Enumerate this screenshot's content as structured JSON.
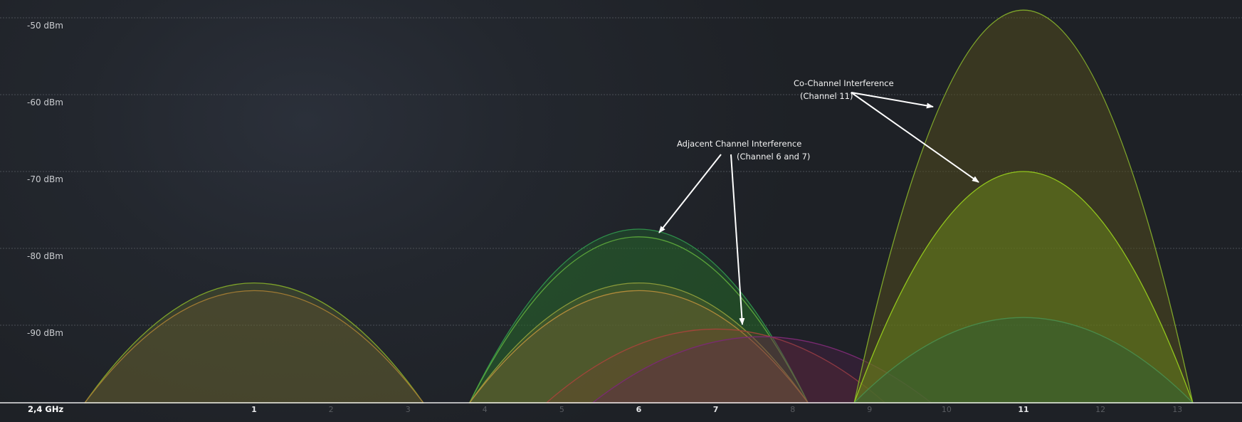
{
  "chart_data": {
    "type": "area",
    "band_label": "2,4 GHz",
    "y_tick_labels": [
      "-50 dBm",
      "-60 dBm",
      "-70 dBm",
      "-80 dBm",
      "-90 dBm"
    ],
    "y_ticks": [
      -50,
      -60,
      -70,
      -80,
      -90
    ],
    "ylim": [
      -100,
      -48
    ],
    "x_tick_labels": [
      "1",
      "2",
      "3",
      "4",
      "5",
      "6",
      "7",
      "8",
      "9",
      "10",
      "11",
      "12",
      "13"
    ],
    "x_ticks": [
      1,
      2,
      3,
      4,
      5,
      6,
      7,
      8,
      9,
      10,
      11,
      12,
      13
    ],
    "highlighted_channels": [
      1,
      6,
      7,
      11
    ],
    "xlim": [
      -1.25,
      14.75
    ],
    "grid": true,
    "networks": [
      {
        "channel": 1,
        "rssi": -84.5,
        "color": "#7ea32a",
        "fill": "rgba(95,110,45,0.35)"
      },
      {
        "channel": 1,
        "rssi": -85.5,
        "color": "#a07a33",
        "fill": "rgba(110,90,50,0.30)"
      },
      {
        "channel": 6,
        "rssi": -77.5,
        "color": "#2f8f4a",
        "fill": "rgba(30,95,45,0.45)"
      },
      {
        "channel": 6,
        "rssi": -78.5,
        "color": "#5aa33a",
        "fill": "rgba(45,100,40,0.30)"
      },
      {
        "channel": 6,
        "rssi": -84.5,
        "color": "#8a9a3a",
        "fill": "rgba(110,110,45,0.30)"
      },
      {
        "channel": 6,
        "rssi": -85.5,
        "color": "#b08a3a",
        "fill": "rgba(130,100,50,0.30)"
      },
      {
        "channel": 7,
        "rssi": -90.5,
        "color": "#a0453a",
        "fill": "rgba(120,55,45,0.25)"
      },
      {
        "channel": 7.6,
        "rssi": -91.5,
        "color": "#7a2a72",
        "fill": "rgba(95,30,85,0.30)"
      },
      {
        "channel": 11,
        "rssi": -49,
        "color": "#7fa62a",
        "fill": "rgba(80,75,30,0.55)"
      },
      {
        "channel": 11,
        "rssi": -70,
        "color": "#93c71d",
        "fill": "rgba(110,140,25,0.50)"
      },
      {
        "channel": 11,
        "rssi": -89,
        "color": "#4a8a4a",
        "fill": "rgba(45,95,55,0.45)"
      }
    ],
    "annotations": [
      {
        "lines": [
          "Adjacent Channel Interference",
          "(Channel 6 and 7)"
        ]
      },
      {
        "lines": [
          "Co-Channel Interference",
          "(Channel 11)"
        ]
      }
    ]
  }
}
